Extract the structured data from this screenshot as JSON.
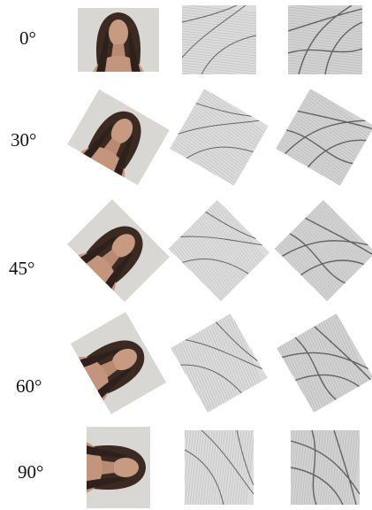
{
  "rows": [
    {
      "label": "0°"
    },
    {
      "label": "30°"
    },
    {
      "label": "45°"
    },
    {
      "label": "60°"
    },
    {
      "label": "90°"
    }
  ]
}
